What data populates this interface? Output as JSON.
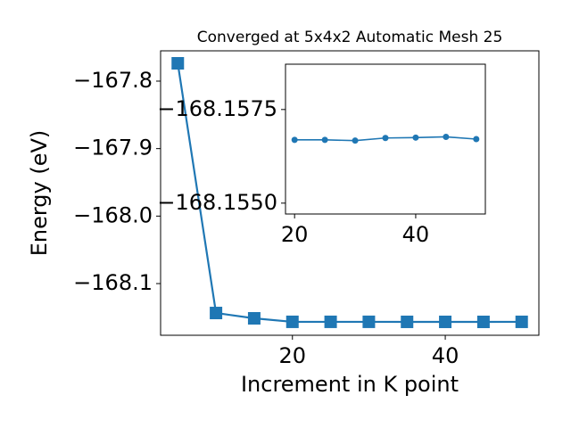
{
  "chart_data": [
    {
      "type": "line",
      "title": "Converged at 5x4x2 Automatic Mesh 25",
      "xlabel": "Increment in K point",
      "ylabel": "Energy (eV)",
      "x": [
        5,
        10,
        15,
        20,
        25,
        30,
        35,
        40,
        45,
        50
      ],
      "series": [
        {
          "color": "#1f77b4",
          "marker": "square",
          "values": [
            -167.7736,
            -168.1436,
            -168.1515,
            -168.15669,
            -168.15669,
            -168.15667,
            -168.15674,
            -168.15675,
            -168.15677,
            -168.15671
          ]
        }
      ],
      "xlim": [
        2.75,
        52.25
      ],
      "xticks": [
        20,
        40
      ],
      "ylim": [
        -168.1766,
        -167.7551
      ],
      "yticks": [
        {
          "value": -167.8,
          "label": "−167.8"
        },
        {
          "value": -167.9,
          "label": "−167.9"
        },
        {
          "value": -168.0,
          "label": "−168.0"
        },
        {
          "value": -168.1,
          "label": "−168.1"
        }
      ]
    },
    {
      "type": "line",
      "x": [
        20,
        25,
        30,
        35,
        40,
        45,
        50
      ],
      "series": [
        {
          "color": "#1f77b4",
          "marker": "circle",
          "values": [
            -168.15669,
            -168.15669,
            -168.15667,
            -168.15674,
            -168.15675,
            -168.15677,
            -168.15671
          ]
        }
      ],
      "xlim": [
        18.5,
        51.5
      ],
      "xticks": [
        20,
        40
      ],
      "ylim": [
        -168.15471,
        -168.15871
      ],
      "yticks": [
        {
          "value": -168.1575,
          "label": "−168.1575"
        },
        {
          "value": -168.155,
          "label": "−168.1550"
        }
      ]
    }
  ]
}
